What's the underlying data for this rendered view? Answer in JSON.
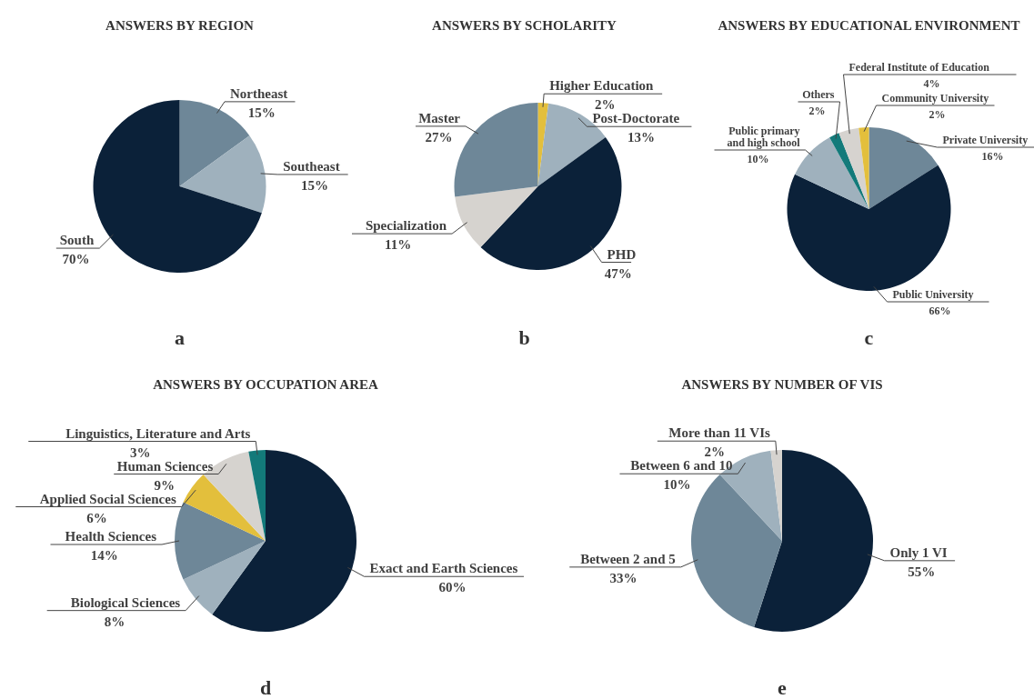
{
  "chart_data": [
    {
      "type": "pie",
      "title": "ANSWERS BY REGION",
      "annotations": [
        "a"
      ],
      "categories": [
        "Northeast",
        "Southeast",
        "South"
      ],
      "values": [
        15,
        15,
        70
      ],
      "value_labels": [
        "15%",
        "15%",
        "70%"
      ],
      "colors": [
        "#6e8798",
        "#9fb1bd",
        "#0b2139"
      ],
      "legend": false
    },
    {
      "type": "pie",
      "title": "ANSWERS BY SCHOLARITY",
      "annotations": [
        "b"
      ],
      "categories": [
        "Higher Education",
        "Post-Doctorate",
        "PHD",
        "Specialization",
        "Master"
      ],
      "values": [
        2,
        13,
        47,
        11,
        27
      ],
      "value_labels": [
        "2%",
        "13%",
        "47%",
        "11%",
        "27%"
      ],
      "colors": [
        "#e3bf3c",
        "#9fb1bd",
        "#0b2139",
        "#d6d3cf",
        "#6e8798"
      ],
      "legend": false
    },
    {
      "type": "pie",
      "title": "ANSWERS BY EDUCATIONAL ENVIRONMENT",
      "annotations": [
        "c"
      ],
      "categories": [
        "Private University",
        "Public University",
        "Public primary and high school",
        "Others",
        "Federal Institute of Education",
        "Community University"
      ],
      "values": [
        16,
        66,
        10,
        2,
        4,
        2
      ],
      "value_labels": [
        "16%",
        "66%",
        "10%",
        "2%",
        "4%",
        "2%"
      ],
      "colors": [
        "#6e8798",
        "#0b2139",
        "#9fb1bd",
        "#137a7a",
        "#d6d3cf",
        "#e3bf3c"
      ],
      "legend": false
    },
    {
      "type": "pie",
      "title": "ANSWERS BY OCCUPATION AREA",
      "annotations": [
        "d"
      ],
      "categories": [
        "Exact and Earth Sciences",
        "Biological Sciences",
        "Health Sciences",
        "Applied Social Sciences",
        "Human Sciences",
        "Linguistics, Literature and Arts"
      ],
      "values": [
        60,
        8,
        14,
        6,
        9,
        3
      ],
      "value_labels": [
        "60%",
        "8%",
        "14%",
        "6%",
        "9%",
        "3%"
      ],
      "colors": [
        "#0b2139",
        "#9fb1bd",
        "#6e8798",
        "#e3bf3c",
        "#d6d3cf",
        "#137a7a"
      ],
      "legend": false
    },
    {
      "type": "pie",
      "title": "ANSWERS BY NUMBER OF VIS",
      "annotations": [
        "e"
      ],
      "categories": [
        "Only 1 VI",
        "Between 2 and 5",
        "Between 6 and 10",
        "More than 11 VIs"
      ],
      "values": [
        55,
        33,
        10,
        2
      ],
      "value_labels": [
        "55%",
        "33%",
        "10%",
        "2%"
      ],
      "colors": [
        "#0b2139",
        "#6e8798",
        "#9fb1bd",
        "#d6d3cf"
      ],
      "legend": false
    }
  ]
}
